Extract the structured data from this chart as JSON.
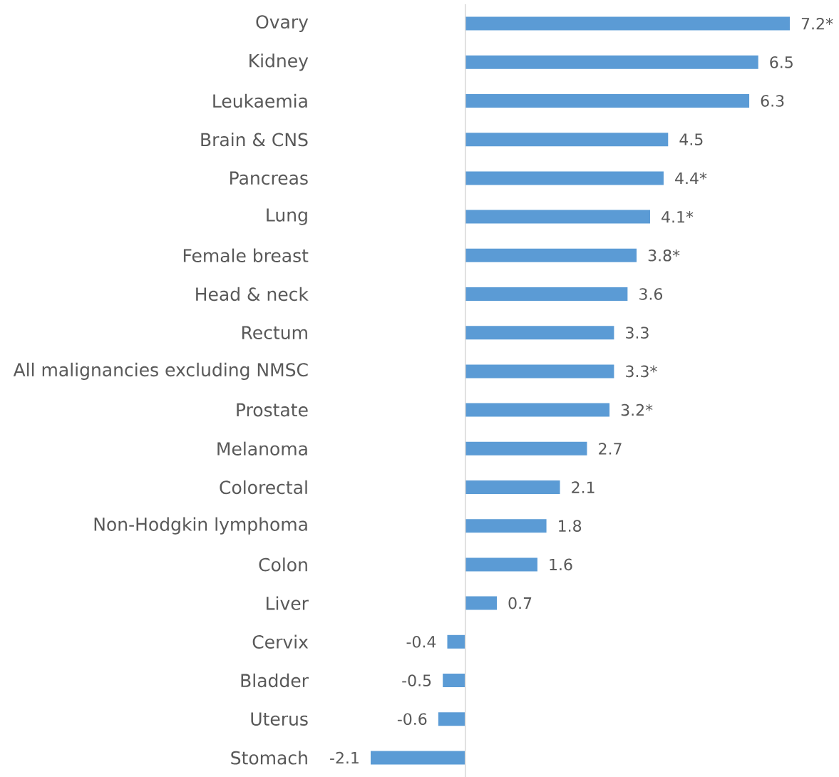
{
  "chart_data": {
    "type": "bar",
    "orientation": "horizontal",
    "color": "#5b9bd5",
    "categories": [
      "Ovary",
      "Kidney",
      "Leukaemia",
      "Brain & CNS",
      "Pancreas",
      "Lung",
      "Female breast",
      "Head & neck",
      "Rectum",
      "All malignancies excluding NMSC",
      "Prostate",
      "Melanoma",
      "Colorectal",
      "Non-Hodgkin lymphoma",
      "Colon",
      "Liver",
      "Cervix",
      "Bladder",
      "Uterus",
      "Stomach"
    ],
    "values": [
      7.2,
      6.5,
      6.3,
      4.5,
      4.4,
      4.1,
      3.8,
      3.6,
      3.3,
      3.3,
      3.2,
      2.7,
      2.1,
      1.8,
      1.6,
      0.7,
      -0.4,
      -0.5,
      -0.6,
      -2.1
    ],
    "value_labels": [
      "7.2*",
      "6.5",
      "6.3",
      "4.5",
      "4.4*",
      "4.1*",
      "3.8*",
      "3.6",
      "3.3",
      "3.3*",
      "3.2*",
      "2.7",
      "2.1",
      "1.8",
      "1.6",
      "0.7",
      "-0.4",
      "-0.5",
      "-0.6",
      "-2.1"
    ]
  }
}
